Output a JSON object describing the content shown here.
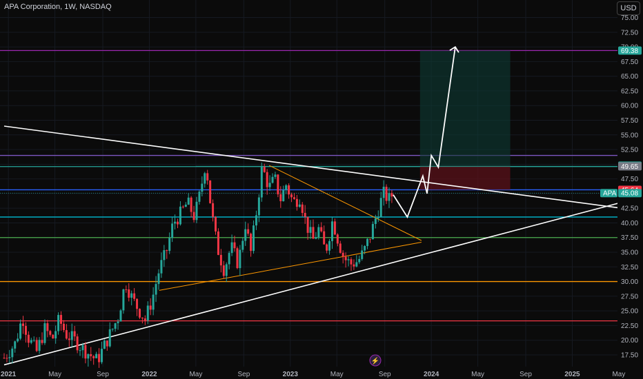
{
  "header": {
    "title": "APA Corporation, 1W, NASDAQ",
    "currency": "USD"
  },
  "chart_data": {
    "type": "candlestick",
    "symbol": "APA",
    "interval": "1W",
    "exchange": "NASDAQ",
    "ylim": [
      15.5,
      78
    ],
    "y_ticks": [
      17.5,
      20,
      22.5,
      25,
      27.5,
      30,
      32.5,
      35,
      37.5,
      40,
      42.5,
      45,
      47.5,
      50,
      52.5,
      55,
      57.5,
      60,
      62.5,
      65,
      67.5,
      70,
      72.5,
      75
    ],
    "x_ticks": [
      {
        "label": "2021",
        "t": 2021.0
      },
      {
        "label": "May",
        "t": 2021.33
      },
      {
        "label": "Sep",
        "t": 2021.67
      },
      {
        "label": "2022",
        "t": 2022.0
      },
      {
        "label": "May",
        "t": 2022.33
      },
      {
        "label": "Sep",
        "t": 2022.67
      },
      {
        "label": "2023",
        "t": 2023.0
      },
      {
        "label": "May",
        "t": 2023.33
      },
      {
        "label": "Sep",
        "t": 2023.67
      },
      {
        "label": "2024",
        "t": 2024.0
      },
      {
        "label": "May",
        "t": 2024.33
      },
      {
        "label": "Sep",
        "t": 2024.67
      },
      {
        "label": "2025",
        "t": 2025.0
      },
      {
        "label": "May",
        "t": 2025.33
      }
    ],
    "price_path": [
      [
        2020.97,
        17.0
      ],
      [
        2021.05,
        19.5
      ],
      [
        2021.1,
        24.0
      ],
      [
        2021.14,
        20.5
      ],
      [
        2021.2,
        18.0
      ],
      [
        2021.26,
        22.0
      ],
      [
        2021.31,
        20.0
      ],
      [
        2021.36,
        23.5
      ],
      [
        2021.41,
        21.0
      ],
      [
        2021.47,
        20.0
      ],
      [
        2021.53,
        18.5
      ],
      [
        2021.58,
        17.5
      ],
      [
        2021.63,
        16.5
      ],
      [
        2021.68,
        19.0
      ],
      [
        2021.72,
        21.0
      ],
      [
        2021.78,
        24.0
      ],
      [
        2021.83,
        30.0
      ],
      [
        2021.88,
        27.0
      ],
      [
        2021.93,
        25.0
      ],
      [
        2021.97,
        23.5
      ],
      [
        2022.02,
        27.0
      ],
      [
        2022.07,
        32.0
      ],
      [
        2022.12,
        35.0
      ],
      [
        2022.17,
        40.0
      ],
      [
        2022.22,
        41.5
      ],
      [
        2022.27,
        43.5
      ],
      [
        2022.32,
        41.0
      ],
      [
        2022.36,
        45.0
      ],
      [
        2022.4,
        50.5
      ],
      [
        2022.44,
        42.0
      ],
      [
        2022.48,
        36.0
      ],
      [
        2022.53,
        32.0
      ],
      [
        2022.58,
        36.0
      ],
      [
        2022.63,
        33.0
      ],
      [
        2022.68,
        40.0
      ],
      [
        2022.72,
        35.0
      ],
      [
        2022.76,
        42.0
      ],
      [
        2022.8,
        49.5
      ],
      [
        2022.85,
        46.0
      ],
      [
        2022.89,
        47.5
      ],
      [
        2022.93,
        44.0
      ],
      [
        2022.97,
        46.5
      ],
      [
        2023.02,
        43.5
      ],
      [
        2023.07,
        44.5
      ],
      [
        2023.11,
        40.0
      ],
      [
        2023.16,
        37.0
      ],
      [
        2023.2,
        39.0
      ],
      [
        2023.25,
        35.0
      ],
      [
        2023.3,
        40.5
      ],
      [
        2023.34,
        37.0
      ],
      [
        2023.38,
        34.0
      ],
      [
        2023.43,
        33.0
      ],
      [
        2023.48,
        33.5
      ],
      [
        2023.52,
        35.0
      ],
      [
        2023.57,
        38.0
      ],
      [
        2023.62,
        42.0
      ],
      [
        2023.66,
        45.0
      ],
      [
        2023.7,
        44.0
      ],
      [
        2023.73,
        45.08
      ]
    ],
    "horizontal_levels": [
      {
        "price": 69.38,
        "color": "#9c27b0"
      },
      {
        "price": 51.5,
        "color": "#7e57c2"
      },
      {
        "price": 49.6,
        "color": "#26a69a"
      },
      {
        "price": 45.64,
        "color": "#2962ff"
      },
      {
        "price": 41.0,
        "color": "#00bcd4"
      },
      {
        "price": 37.5,
        "color": "#4caf50"
      },
      {
        "price": 30.0,
        "color": "#ff9800"
      },
      {
        "price": 23.3,
        "color": "#f23645"
      }
    ],
    "trendlines": [
      {
        "from": [
          2020.97,
          56.5
        ],
        "to": [
          2025.35,
          42.5
        ],
        "color": "#ffffff"
      },
      {
        "from": [
          2020.97,
          15.8
        ],
        "to": [
          2025.35,
          43.5
        ],
        "color": "#ffffff"
      },
      {
        "from": [
          2022.85,
          49.8
        ],
        "to": [
          2023.93,
          37.0
        ],
        "color": "#ff9800"
      },
      {
        "from": [
          2022.07,
          28.5
        ],
        "to": [
          2023.93,
          36.7
        ],
        "color": "#ff9800"
      }
    ],
    "projection": [
      [
        2023.73,
        44.8
      ],
      [
        2023.83,
        41.0
      ],
      [
        2023.94,
        48.0
      ],
      [
        2023.97,
        45.0
      ],
      [
        2024.0,
        51.5
      ],
      [
        2024.05,
        49.5
      ],
      [
        2024.17,
        70.0
      ]
    ],
    "position": {
      "t0": 2023.92,
      "t1": 2024.56,
      "entry": 49.65,
      "target": 69.38,
      "stop": 45.64
    },
    "price_tags": [
      {
        "price": 69.38,
        "label": "69.38",
        "color": "#26a69a"
      },
      {
        "price": 49.76,
        "label": "49.76",
        "color": "#26a69a"
      },
      {
        "price": 49.65,
        "label": "49.65",
        "color": "#787b86"
      },
      {
        "price": 45.64,
        "label": "45.64",
        "color": "#f23645"
      },
      {
        "price": 45.08,
        "label": "45.08",
        "color": "#26a69a",
        "symbol": "APA"
      }
    ]
  }
}
